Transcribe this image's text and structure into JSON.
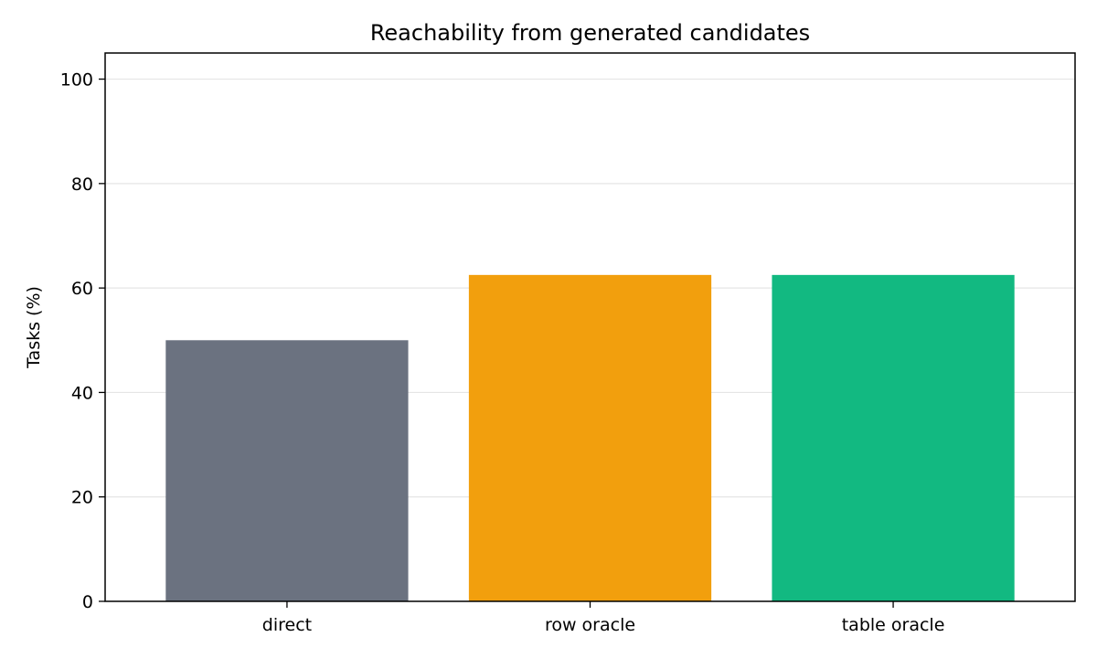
{
  "chart_data": {
    "type": "bar",
    "title": "Reachability from generated candidates",
    "xlabel": "",
    "ylabel": "Tasks (%)",
    "categories": [
      "direct",
      "row oracle",
      "table oracle"
    ],
    "values": [
      50.0,
      62.5,
      62.5
    ],
    "colors": [
      "#6b7280",
      "#f29f0d",
      "#12b981"
    ],
    "ylim": [
      0,
      105
    ],
    "yticks": [
      0,
      20,
      40,
      60,
      80,
      100
    ],
    "ytick_labels": [
      "0",
      "20",
      "40",
      "60",
      "80",
      "100"
    ],
    "grid": "horizontal",
    "grid_color": "#e5e5e5",
    "legend": "none"
  }
}
